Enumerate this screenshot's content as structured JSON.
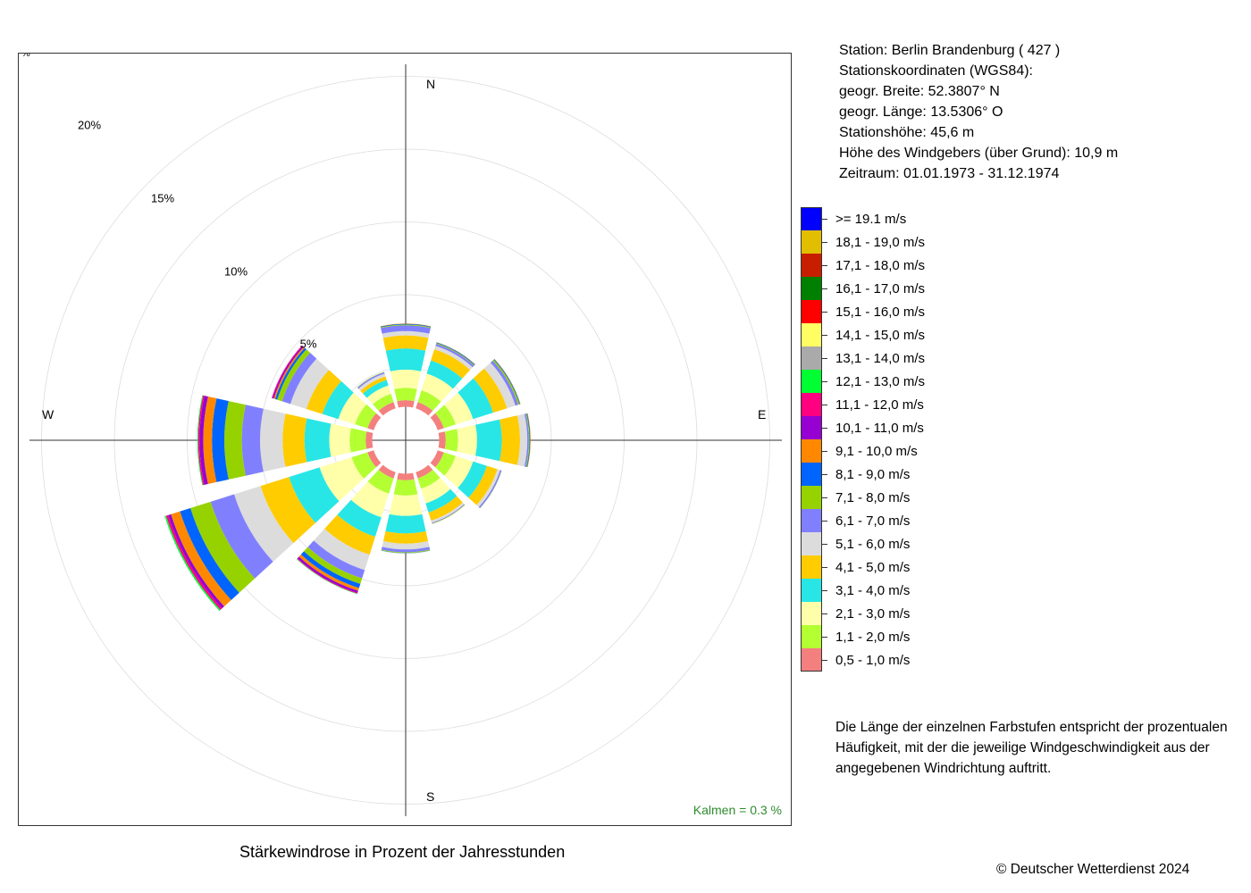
{
  "title": "Stärkewindrose in Prozent der Jahresstunden",
  "station_info": [
    "Station:  Berlin Brandenburg  ( 427 )",
    "Stationskoordinaten (WGS84):",
    "geogr. Breite: 52.3807° N",
    "geogr. Länge: 13.5306° O",
    "Stationshöhe: 45,6 m",
    "Höhe des Windgebers (über Grund): 10,9 m",
    "Zeitraum: 01.01.1973 - 31.12.1974"
  ],
  "note": [
    "Die Länge der einzelnen Farbstufen entspricht der prozentualen",
    "Häufigkeit, mit der die jeweilige Windgeschwindigkeit aus der",
    "angegebenen Windrichtung auftritt."
  ],
  "copyright": "© Deutscher Wetterdienst  2024",
  "calm_label": "Kalmen  =  0.3 %",
  "percent_sign": "%",
  "directions": {
    "n": "N",
    "e": "E",
    "s": "S",
    "w": "W"
  },
  "chart_data": {
    "type": "wind-rose",
    "calm_percent": 0.3,
    "ring_labels": [
      "5%",
      "10%",
      "15%",
      "20%"
    ],
    "ring_values": [
      5,
      10,
      15,
      20,
      25
    ],
    "inner_radius_percent": 2.3,
    "sector_width_deg": 25,
    "sectors_deg": [
      0,
      30,
      60,
      90,
      120,
      150,
      180,
      210,
      240,
      270,
      300,
      330
    ],
    "classes": [
      {
        "label": "0,5 - 1,0 m/s",
        "color": "#f47f7f"
      },
      {
        "label": "1,1 - 2,0 m/s",
        "color": "#b4ff32"
      },
      {
        "label": "2,1 - 3,0 m/s",
        "color": "#ffffaa"
      },
      {
        "label": "3,1 - 4,0 m/s",
        "color": "#28e6e6"
      },
      {
        "label": "4,1 - 5,0 m/s",
        "color": "#ffcc00"
      },
      {
        "label": "5,1 - 6,0 m/s",
        "color": "#dcdcdc"
      },
      {
        "label": "6,1 - 7,0 m/s",
        "color": "#8080ff"
      },
      {
        "label": "7,1 - 8,0 m/s",
        "color": "#96d200"
      },
      {
        "label": "8,1 - 9,0 m/s",
        "color": "#0064ff"
      },
      {
        "label": "9,1 - 10,0 m/s",
        "color": "#ff8800"
      },
      {
        "label": "10,1 - 11,0 m/s",
        "color": "#9600d2"
      },
      {
        "label": "11,1 - 12,0 m/s",
        "color": "#ff0080"
      },
      {
        "label": "12,1 - 13,0 m/s",
        "color": "#00ff32"
      },
      {
        "label": "13,1 - 14,0 m/s",
        "color": "#aaaaaa"
      },
      {
        "label": "14,1 - 15,0 m/s",
        "color": "#ffff64"
      },
      {
        "label": "15,1 - 16,0 m/s",
        "color": "#ff0000"
      },
      {
        "label": "16,1 - 17,0 m/s",
        "color": "#008000"
      },
      {
        "label": "17,1 - 18,0 m/s",
        "color": "#c81e00"
      },
      {
        "label": "18,1 - 19,0 m/s",
        "color": "#e1be00"
      },
      {
        "label": ">= 19.1 m/s",
        "color": "#0000ff"
      }
    ],
    "values": [
      [
        0.45,
        0.85,
        1.25,
        1.45,
        0.9,
        0.3,
        0.4,
        0.05,
        0.05,
        0.02
      ],
      [
        0.45,
        0.85,
        1.2,
        0.95,
        0.8,
        0.25,
        0.15,
        0.05,
        0.05,
        0.02
      ],
      [
        0.45,
        0.85,
        1.25,
        1.45,
        1.0,
        0.6,
        0.2,
        0.1,
        0.05,
        0.02
      ],
      [
        0.45,
        0.85,
        1.3,
        1.7,
        1.25,
        0.5,
        0.1,
        0.05,
        0.05,
        0.03
      ],
      [
        0.45,
        0.85,
        1.25,
        1.0,
        0.75,
        0.2,
        0.1,
        0.02
      ],
      [
        0.45,
        0.75,
        1.05,
        0.65,
        0.6,
        0.15,
        0.05,
        0.03
      ],
      [
        0.45,
        1.05,
        1.4,
        1.2,
        0.7,
        0.4,
        0.2,
        0.05,
        0.02
      ],
      [
        0.45,
        1.1,
        1.7,
        1.4,
        1.3,
        1.1,
        0.6,
        0.4,
        0.3,
        0.2,
        0.15,
        0.05,
        0.03
      ],
      [
        0.45,
        1.15,
        2.3,
        2.2,
        2.05,
        1.9,
        1.7,
        1.45,
        0.75,
        0.65,
        0.2,
        0.15,
        0.1
      ],
      [
        0.45,
        1.1,
        1.4,
        1.7,
        1.5,
        1.55,
        1.25,
        1.2,
        0.85,
        0.6,
        0.25,
        0.1,
        0.05
      ],
      [
        0.45,
        0.9,
        1.2,
        1.15,
        1.15,
        1.15,
        0.6,
        0.35,
        0.15,
        0.1,
        0.1,
        0.05
      ],
      [
        0.45,
        0.6,
        0.6,
        0.4,
        0.25,
        0.2,
        0.1,
        0.02
      ]
    ]
  }
}
